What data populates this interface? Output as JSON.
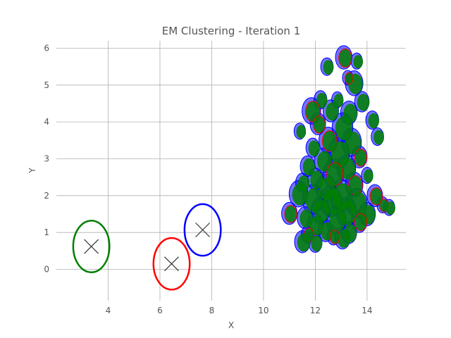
{
  "chart_data": {
    "type": "scatter",
    "title": "EM Clustering - Iteration 1",
    "xlabel": "X",
    "ylabel": "Y",
    "xlim": [
      2.0,
      15.5
    ],
    "ylim": [
      -0.85,
      6.2
    ],
    "xticks": [
      4,
      6,
      8,
      10,
      12,
      14
    ],
    "yticks": [
      0,
      1,
      2,
      3,
      4,
      5,
      6
    ],
    "grid": true,
    "colors": {
      "cluster_a": "#0000ff",
      "cluster_b": "#008000",
      "cluster_c": "#ff0000"
    },
    "components": [
      {
        "mean": [
          3.35,
          0.62
        ],
        "width_x": 1.4,
        "height_y": 1.4,
        "color": "#008000"
      },
      {
        "mean": [
          6.45,
          0.15
        ],
        "width_x": 1.4,
        "height_y": 1.4,
        "color": "#ff0000"
      },
      {
        "mean": [
          7.65,
          1.07
        ],
        "width_x": 1.4,
        "height_y": 1.4,
        "color": "#0000ff"
      }
    ],
    "points": [
      {
        "x": 13.1,
        "y": 5.75,
        "r": 0.32
      },
      {
        "x": 13.6,
        "y": 5.65,
        "r": 0.22
      },
      {
        "x": 12.45,
        "y": 5.5,
        "r": 0.24
      },
      {
        "x": 13.5,
        "y": 5.05,
        "r": 0.34
      },
      {
        "x": 13.25,
        "y": 5.2,
        "r": 0.2
      },
      {
        "x": 12.2,
        "y": 4.6,
        "r": 0.25
      },
      {
        "x": 12.85,
        "y": 4.6,
        "r": 0.22
      },
      {
        "x": 13.8,
        "y": 4.55,
        "r": 0.28
      },
      {
        "x": 11.85,
        "y": 4.3,
        "r": 0.36
      },
      {
        "x": 12.6,
        "y": 4.3,
        "r": 0.3
      },
      {
        "x": 13.3,
        "y": 4.25,
        "r": 0.32
      },
      {
        "x": 14.2,
        "y": 4.05,
        "r": 0.25
      },
      {
        "x": 12.1,
        "y": 3.95,
        "r": 0.3
      },
      {
        "x": 13.05,
        "y": 3.85,
        "r": 0.4
      },
      {
        "x": 11.4,
        "y": 3.75,
        "r": 0.22
      },
      {
        "x": 14.4,
        "y": 3.6,
        "r": 0.24
      },
      {
        "x": 12.5,
        "y": 3.5,
        "r": 0.36
      },
      {
        "x": 13.4,
        "y": 3.45,
        "r": 0.38
      },
      {
        "x": 11.9,
        "y": 3.3,
        "r": 0.26
      },
      {
        "x": 12.9,
        "y": 3.15,
        "r": 0.42
      },
      {
        "x": 13.7,
        "y": 3.05,
        "r": 0.3
      },
      {
        "x": 12.3,
        "y": 2.95,
        "r": 0.34
      },
      {
        "x": 11.7,
        "y": 2.8,
        "r": 0.28
      },
      {
        "x": 13.2,
        "y": 2.75,
        "r": 0.36
      },
      {
        "x": 12.7,
        "y": 2.6,
        "r": 0.4
      },
      {
        "x": 14.0,
        "y": 2.55,
        "r": 0.22
      },
      {
        "x": 12.0,
        "y": 2.45,
        "r": 0.3
      },
      {
        "x": 11.5,
        "y": 2.35,
        "r": 0.26
      },
      {
        "x": 13.5,
        "y": 2.3,
        "r": 0.34
      },
      {
        "x": 12.4,
        "y": 2.2,
        "r": 0.38
      },
      {
        "x": 11.35,
        "y": 2.05,
        "r": 0.36
      },
      {
        "x": 13.0,
        "y": 2.0,
        "r": 0.44
      },
      {
        "x": 14.3,
        "y": 2.0,
        "r": 0.3
      },
      {
        "x": 11.9,
        "y": 1.9,
        "r": 0.4
      },
      {
        "x": 12.6,
        "y": 1.85,
        "r": 0.42
      },
      {
        "x": 13.6,
        "y": 1.8,
        "r": 0.4
      },
      {
        "x": 14.6,
        "y": 1.75,
        "r": 0.22
      },
      {
        "x": 14.85,
        "y": 1.68,
        "r": 0.22
      },
      {
        "x": 12.2,
        "y": 1.6,
        "r": 0.36
      },
      {
        "x": 13.2,
        "y": 1.55,
        "r": 0.4
      },
      {
        "x": 11.0,
        "y": 1.52,
        "r": 0.3
      },
      {
        "x": 14.0,
        "y": 1.5,
        "r": 0.32
      },
      {
        "x": 11.6,
        "y": 1.4,
        "r": 0.3
      },
      {
        "x": 12.8,
        "y": 1.35,
        "r": 0.38
      },
      {
        "x": 13.7,
        "y": 1.3,
        "r": 0.3
      },
      {
        "x": 12.0,
        "y": 1.2,
        "r": 0.32
      },
      {
        "x": 12.4,
        "y": 1.05,
        "r": 0.3
      },
      {
        "x": 13.3,
        "y": 1.0,
        "r": 0.3
      },
      {
        "x": 11.7,
        "y": 0.95,
        "r": 0.24
      },
      {
        "x": 13.05,
        "y": 0.85,
        "r": 0.3
      },
      {
        "x": 11.5,
        "y": 0.75,
        "r": 0.3
      },
      {
        "x": 12.0,
        "y": 0.72,
        "r": 0.26
      },
      {
        "x": 12.7,
        "y": 0.9,
        "r": 0.24
      }
    ]
  }
}
